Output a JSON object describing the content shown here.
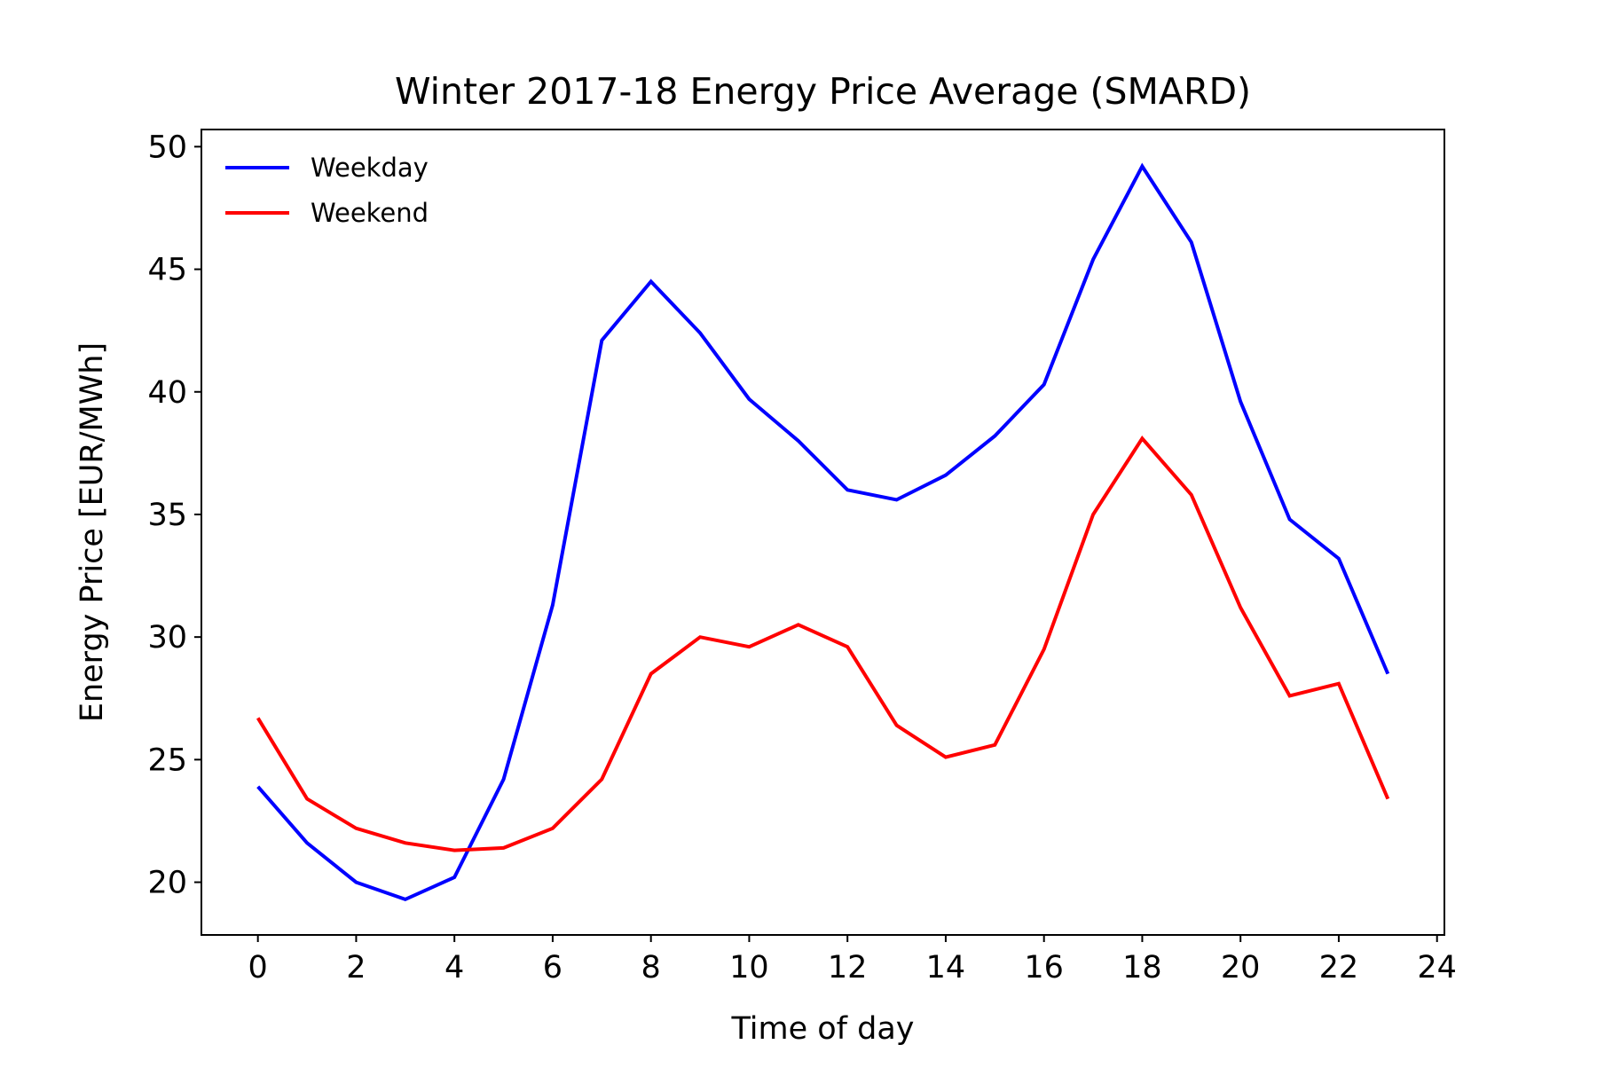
{
  "chart_data": {
    "type": "line",
    "title": "Winter 2017-18 Energy Price Average (SMARD)",
    "xlabel": "Time of day",
    "ylabel": "Energy Price [EUR/MWh]",
    "xlim": [
      -1.15,
      24.15
    ],
    "ylim": [
      17.85,
      50.7
    ],
    "xticks": [
      0,
      2,
      4,
      6,
      8,
      10,
      12,
      14,
      16,
      18,
      20,
      22,
      24
    ],
    "yticks": [
      20,
      25,
      30,
      35,
      40,
      45,
      50
    ],
    "grid": false,
    "legend_position": "top-left",
    "x": [
      0,
      1,
      2,
      3,
      4,
      5,
      6,
      7,
      8,
      9,
      10,
      11,
      12,
      13,
      14,
      15,
      16,
      17,
      18,
      19,
      20,
      21,
      22,
      23
    ],
    "series": [
      {
        "name": "Weekday",
        "color": "#0000ff",
        "values": [
          23.9,
          21.6,
          20.0,
          19.3,
          20.2,
          24.2,
          31.3,
          42.1,
          44.5,
          42.4,
          39.7,
          38.0,
          36.0,
          35.6,
          36.6,
          38.2,
          40.3,
          45.4,
          49.2,
          46.1,
          39.6,
          34.8,
          33.2,
          28.5
        ]
      },
      {
        "name": "Weekend",
        "color": "#ff0000",
        "values": [
          26.7,
          23.4,
          22.2,
          21.6,
          21.3,
          21.4,
          22.2,
          24.2,
          28.5,
          30.0,
          29.6,
          30.5,
          29.6,
          26.4,
          25.1,
          25.6,
          29.5,
          35.0,
          38.1,
          35.8,
          31.2,
          27.6,
          28.1,
          23.4
        ]
      }
    ]
  }
}
